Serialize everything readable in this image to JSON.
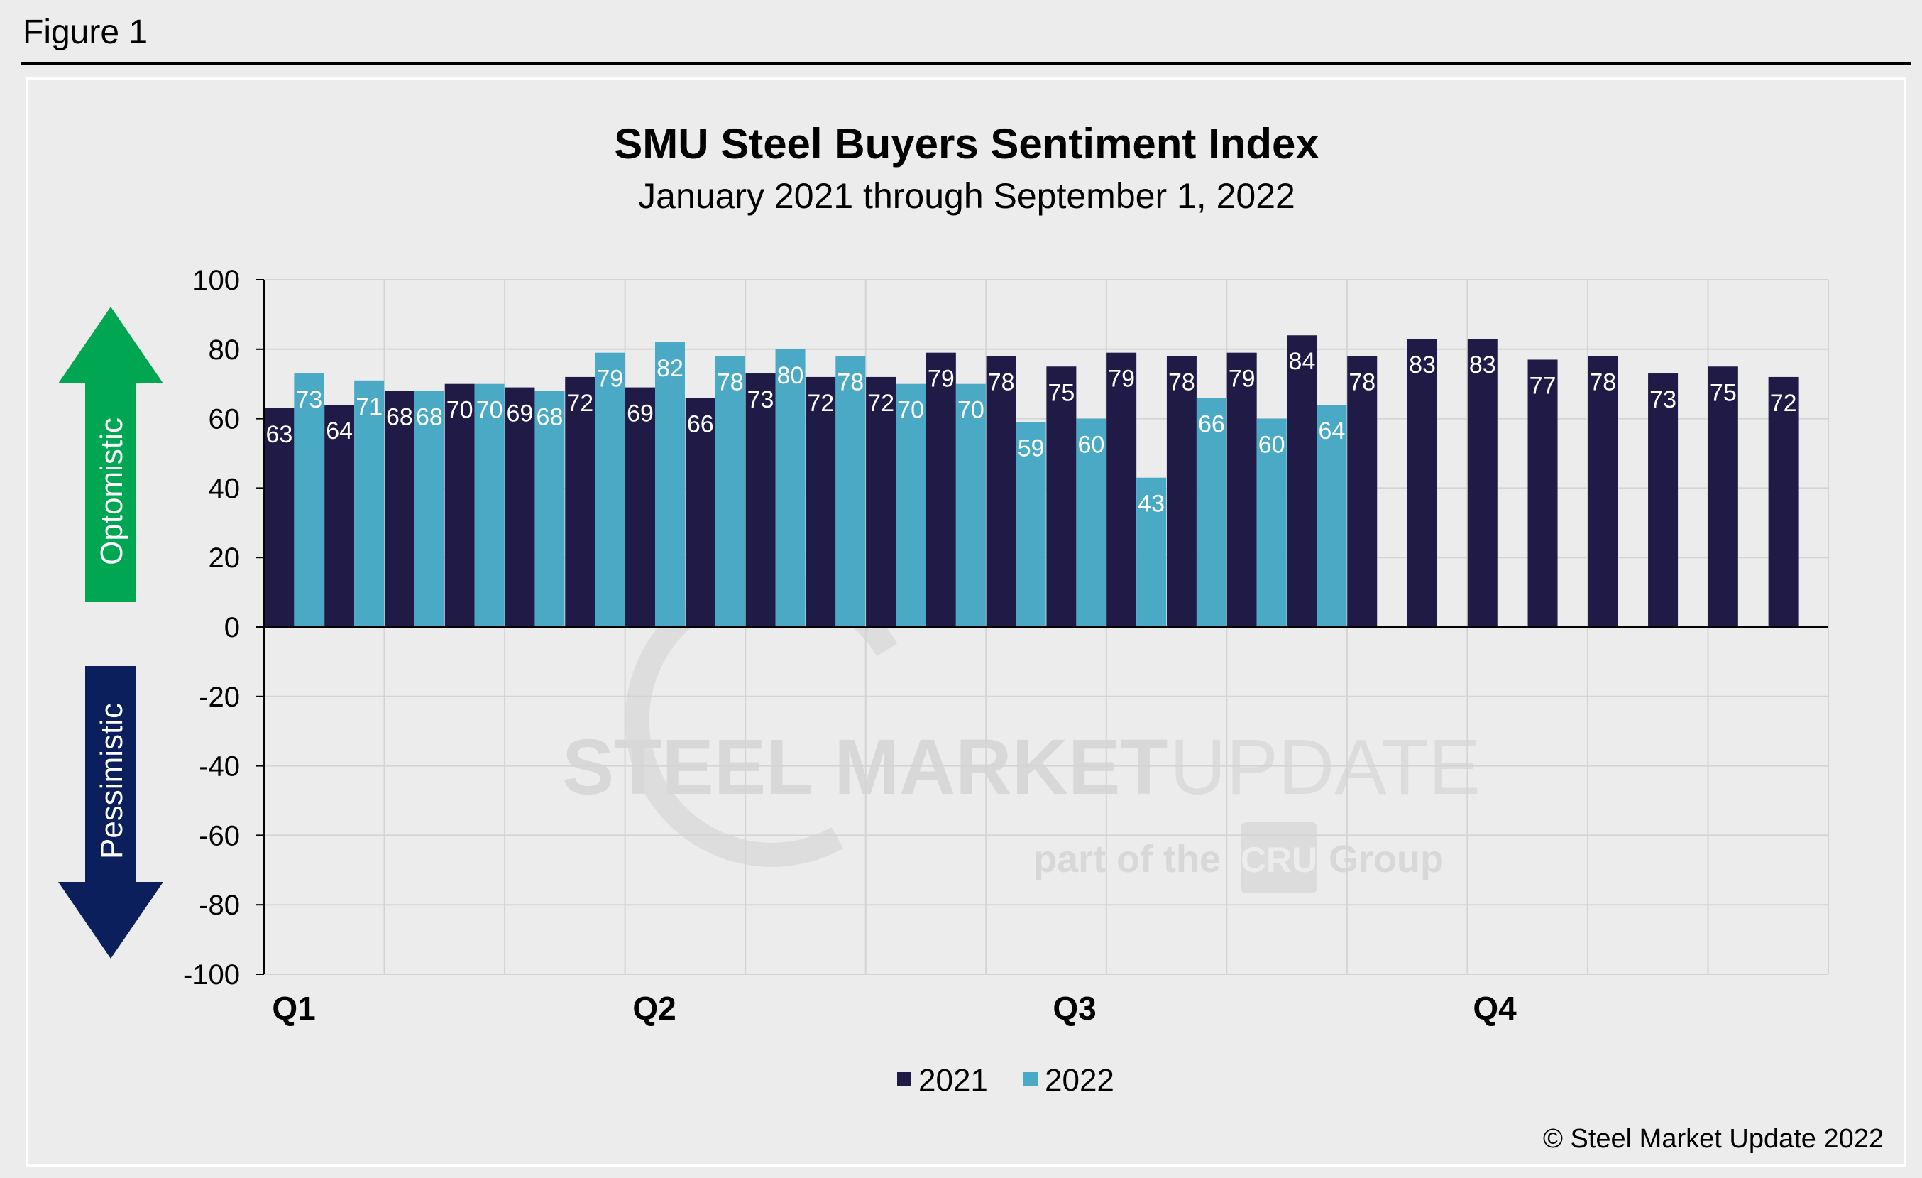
{
  "figure_label": "Figure 1",
  "copyright": "© Steel Market Update 2022",
  "watermark": {
    "line1_bold": "STEEL MARKET",
    "line1_light": "UPDATE",
    "line2_prefix": "part of the",
    "line2_logo": "CRU",
    "line2_suffix": "Group"
  },
  "arrows": {
    "up_label": "Optomistic",
    "down_label": "Pessimistic",
    "up_color": "#00a651",
    "down_color": "#0a1f5c"
  },
  "chart_data": {
    "type": "bar",
    "title": "SMU Steel Buyers Sentiment Index",
    "subtitle": "January 2021 through September 1, 2022",
    "ylim": [
      -100,
      100
    ],
    "yticks": [
      100,
      80,
      60,
      40,
      20,
      0,
      -20,
      -40,
      -60,
      -80,
      -100
    ],
    "quarter_labels": [
      "Q1",
      "Q2",
      "Q3",
      "Q4"
    ],
    "legend_position": "bottom",
    "grid": true,
    "series": [
      {
        "name": "2021",
        "color": "#201a47",
        "values": [
          63,
          64,
          68,
          70,
          69,
          72,
          69,
          66,
          73,
          72,
          72,
          79,
          78,
          75,
          79,
          78,
          79,
          84,
          78,
          83,
          83,
          77,
          78,
          73,
          75,
          72
        ]
      },
      {
        "name": "2022",
        "color": "#4aaac6",
        "values": [
          73,
          71,
          68,
          70,
          68,
          79,
          82,
          78,
          80,
          78,
          70,
          70,
          59,
          60,
          43,
          66,
          60,
          64
        ]
      }
    ]
  }
}
